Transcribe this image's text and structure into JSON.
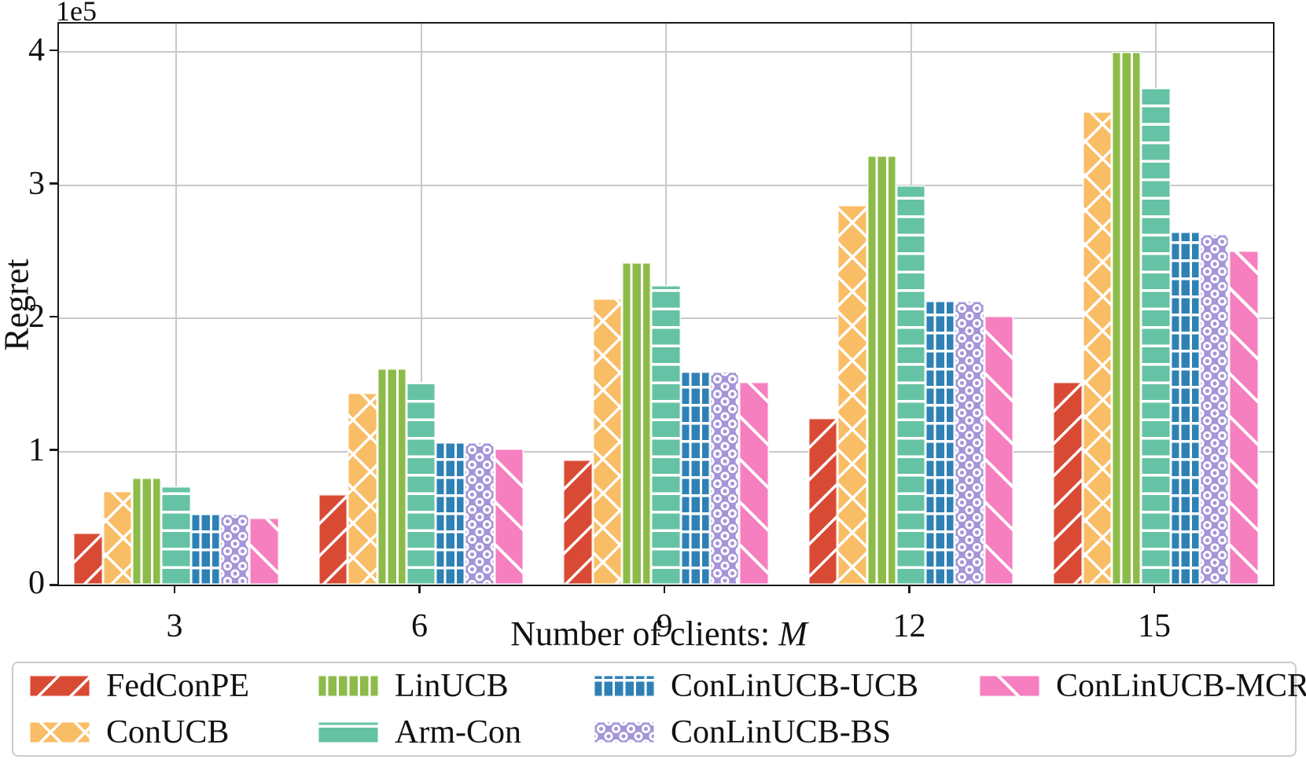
{
  "figure": {
    "offset_text": "1e5",
    "ylabel": "Regret",
    "xlabel_prefix": "Number of clients: ",
    "xlabel_math": "M"
  },
  "chart_data": {
    "type": "bar",
    "title": "",
    "xlabel": "Number of clients: M",
    "ylabel": "Regret",
    "y_scale_note": "y values are in units of 1e5 (axis offset text)",
    "categories": [
      "3",
      "6",
      "9",
      "12",
      "15"
    ],
    "yticks": [
      "0",
      "1",
      "2",
      "3",
      "4"
    ],
    "ylim": [
      0,
      4.21
    ],
    "grid": true,
    "gridline_color": "#c9c9c9",
    "legend_position": "below, 4 columns, 2 rows",
    "series": [
      {
        "name": "FedConPE",
        "color": "#d94a35",
        "hatch": "/",
        "values": [
          0.39,
          0.68,
          0.94,
          1.25,
          1.52
        ]
      },
      {
        "name": "ConUCB",
        "color": "#f9bd66",
        "hatch": "x",
        "values": [
          0.7,
          1.44,
          2.15,
          2.85,
          3.55
        ]
      },
      {
        "name": "LinUCB",
        "color": "#8dbb4a",
        "hatch": "|",
        "values": [
          0.8,
          1.62,
          2.42,
          3.22,
          4.0
        ]
      },
      {
        "name": "Arm-Con",
        "color": "#66c2a4",
        "hatch": "-",
        "values": [
          0.74,
          1.52,
          2.25,
          3.0,
          3.73
        ]
      },
      {
        "name": "ConLinUCB-UCB",
        "color": "#2f81b5",
        "hatch": "+",
        "values": [
          0.53,
          1.07,
          1.6,
          2.13,
          2.65
        ]
      },
      {
        "name": "ConLinUCB-BS",
        "color": "#a495d8",
        "hatch": "o",
        "values": [
          0.53,
          1.07,
          1.6,
          2.13,
          2.63
        ]
      },
      {
        "name": "ConLinUCB-MCR",
        "color": "#f67fc0",
        "hatch": "\\",
        "values": [
          0.5,
          1.02,
          1.52,
          2.02,
          2.51
        ]
      }
    ]
  }
}
